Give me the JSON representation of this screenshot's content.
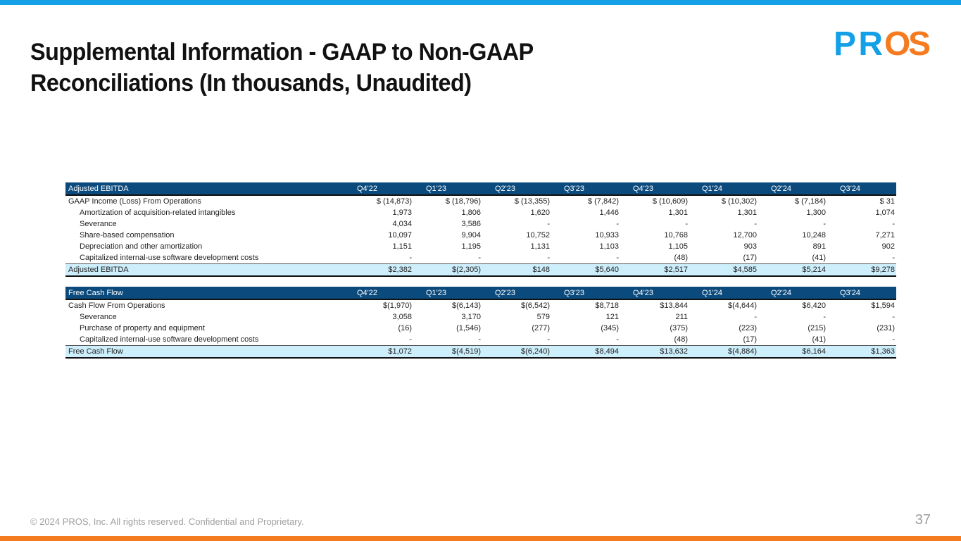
{
  "title_line1": "Supplemental Information - GAAP to Non-GAAP",
  "title_line2": "Reconciliations (In thousands, Unaudited)",
  "logo_text": "PROS",
  "colors": {
    "accent_blue": "#14a0e6",
    "accent_orange": "#f47b20",
    "header_bg": "#0b4a7d",
    "total_bg": "#cdeefb"
  },
  "footer": "© 2024 PROS, Inc. All rights reserved. Confidential and Proprietary.",
  "page_number": "37",
  "tables": [
    {
      "header": "Adjusted EBITDA",
      "columns": [
        "Q4'22",
        "Q1'23",
        "Q2'23",
        "Q3'23",
        "Q4'23",
        "Q1'24",
        "Q2'24",
        "Q3'24"
      ],
      "rows": [
        {
          "label": "GAAP Income (Loss) From Operations",
          "indent": false,
          "type": "first",
          "values": [
            "$ (14,873)",
            "$ (18,796)",
            "$ (13,355)",
            "$ (7,842)",
            "$ (10,609)",
            "$ (10,302)",
            "$ (7,184)",
            "$ 31"
          ]
        },
        {
          "label": "Amortization of acquisition-related intangibles",
          "indent": true,
          "values": [
            "1,973",
            "1,806",
            "1,620",
            "1,446",
            "1,301",
            "1,301",
            "1,300",
            "1,074"
          ]
        },
        {
          "label": "Severance",
          "indent": true,
          "values": [
            "4,034",
            "3,586",
            "-",
            "-",
            "-",
            "-",
            "-",
            "-"
          ]
        },
        {
          "label": "Share-based compensation",
          "indent": true,
          "values": [
            "10,097",
            "9,904",
            "10,752",
            "10,933",
            "10,768",
            "12,700",
            "10,248",
            "7,271"
          ]
        },
        {
          "label": "Depreciation and other amortization",
          "indent": true,
          "values": [
            "1,151",
            "1,195",
            "1,131",
            "1,103",
            "1,105",
            "903",
            "891",
            "902"
          ]
        },
        {
          "label": "Capitalized internal-use software development costs",
          "indent": true,
          "type": "last",
          "values": [
            "-",
            "-",
            "-",
            "-",
            "(48)",
            "(17)",
            "(41)",
            "-"
          ]
        },
        {
          "label": "Adjusted EBITDA",
          "indent": false,
          "type": "total",
          "values": [
            "2,382",
            "(2,305)",
            "148",
            "5,640",
            "2,517",
            "4,585",
            "5,214",
            "9,278"
          ]
        }
      ]
    },
    {
      "header": "Free Cash Flow",
      "columns": [
        "Q4'22",
        "Q1'23",
        "Q2'23",
        "Q3'23",
        "Q4'23",
        "Q1'24",
        "Q2'24",
        "Q3'24"
      ],
      "rows": [
        {
          "label": "Cash Flow From Operations",
          "indent": false,
          "type": "dollar",
          "values": [
            "(1,970)",
            "(6,143)",
            "(6,542)",
            "8,718",
            "13,844",
            "(4,644)",
            "6,420",
            "1,594"
          ]
        },
        {
          "label": "Severance",
          "indent": true,
          "values": [
            "3,058",
            "3,170",
            "579",
            "121",
            "211",
            "-",
            "-",
            "-"
          ]
        },
        {
          "label": "Purchase of property and equipment",
          "indent": true,
          "values": [
            "(16)",
            "(1,546)",
            "(277)",
            "(345)",
            "(375)",
            "(223)",
            "(215)",
            "(231)"
          ]
        },
        {
          "label": "Capitalized internal-use software development costs",
          "indent": true,
          "type": "last",
          "values": [
            "-",
            "-",
            "-",
            "-",
            "(48)",
            "(17)",
            "(41)",
            "-"
          ]
        },
        {
          "label": "Free Cash Flow",
          "indent": false,
          "type": "total",
          "values": [
            "1,072",
            "(4,519)",
            "(6,240)",
            "8,494",
            "13,632",
            "(4,884)",
            "6,164",
            "1,363"
          ]
        }
      ]
    }
  ]
}
